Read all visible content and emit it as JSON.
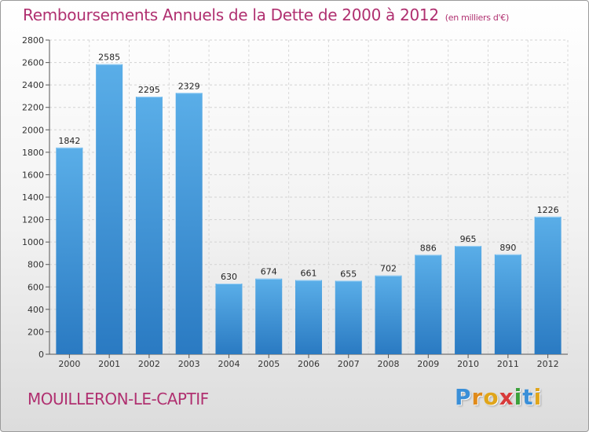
{
  "chart_data": {
    "type": "bar",
    "title": "Remboursements Annuels de la Dette de 2000 à 2012",
    "subtitle": "(en milliers d'€)",
    "categories": [
      "2000",
      "2001",
      "2002",
      "2003",
      "2004",
      "2005",
      "2006",
      "2007",
      "2008",
      "2009",
      "2010",
      "2011",
      "2012"
    ],
    "values": [
      1842,
      2585,
      2295,
      2329,
      630,
      674,
      661,
      655,
      702,
      886,
      965,
      890,
      1226
    ],
    "ylim": [
      0,
      2800
    ],
    "yticks": [
      0,
      200,
      400,
      600,
      800,
      1000,
      1200,
      1400,
      1600,
      1800,
      2000,
      2200,
      2400,
      2600,
      2800
    ],
    "grid": true,
    "xlabel": "",
    "ylabel": ""
  },
  "footer": {
    "commune": "MOUILLERON-LE-CAPTIF",
    "logo_letters": [
      "P",
      "r",
      "o",
      "x",
      "i",
      "t",
      "i"
    ],
    "logo_colors": [
      "#3a8fd8",
      "#e08a1a",
      "#e0a51a",
      "#d83a3a",
      "#3aa03a",
      "#3a8fd8",
      "#e0a51a"
    ]
  },
  "colors": {
    "bar_top": "#5aaee8",
    "bar_bottom": "#2a7ac2",
    "title": "#b03070"
  }
}
